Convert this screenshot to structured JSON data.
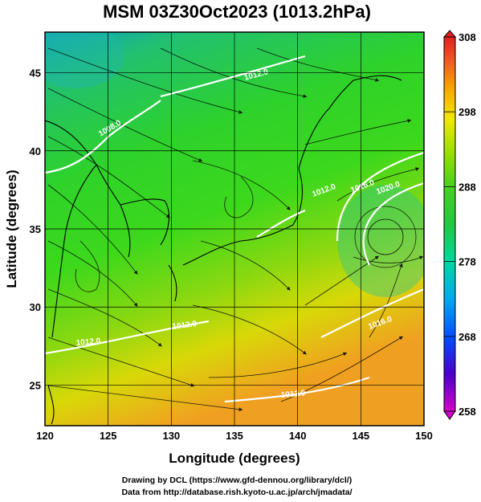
{
  "title": "MSM 03Z30Oct2023 (1013.2hPa)",
  "map": {
    "xlabel": "Longitude (degrees)",
    "ylabel": "Latitude  (degrees)",
    "x_ticks": [
      "120",
      "125",
      "130",
      "135",
      "140",
      "145",
      "150"
    ],
    "y_ticks": [
      "25",
      "30",
      "35",
      "40",
      "45"
    ],
    "x_range": [
      120,
      150
    ],
    "y_range": [
      22.4,
      47.6
    ],
    "field": "streamlines over temperature shading with white isobars",
    "isobar_labels": [
      "1012.0",
      "1008.0",
      "1012.0",
      "1016.0",
      "1020.0",
      "1012.0",
      "1016.0",
      "1012.0",
      "1012.0"
    ]
  },
  "colorbar": {
    "ticks": [
      "308",
      "298",
      "288",
      "278",
      "268",
      "258"
    ],
    "range": [
      258,
      308
    ],
    "colors": [
      "#d400c8",
      "#4a00c8",
      "#0050ff",
      "#00a8f0",
      "#00d8a0",
      "#22c840",
      "#48d020",
      "#a0e000",
      "#f0e800",
      "#f8a800",
      "#f06020",
      "#e02020"
    ]
  },
  "credits": {
    "line1": "Drawing by DCL (https://www.gfd-dennou.org/library/dcl/)",
    "line2": "Data from http://database.rish.kyoto-u.ac.jp/arch/jmadata/"
  }
}
